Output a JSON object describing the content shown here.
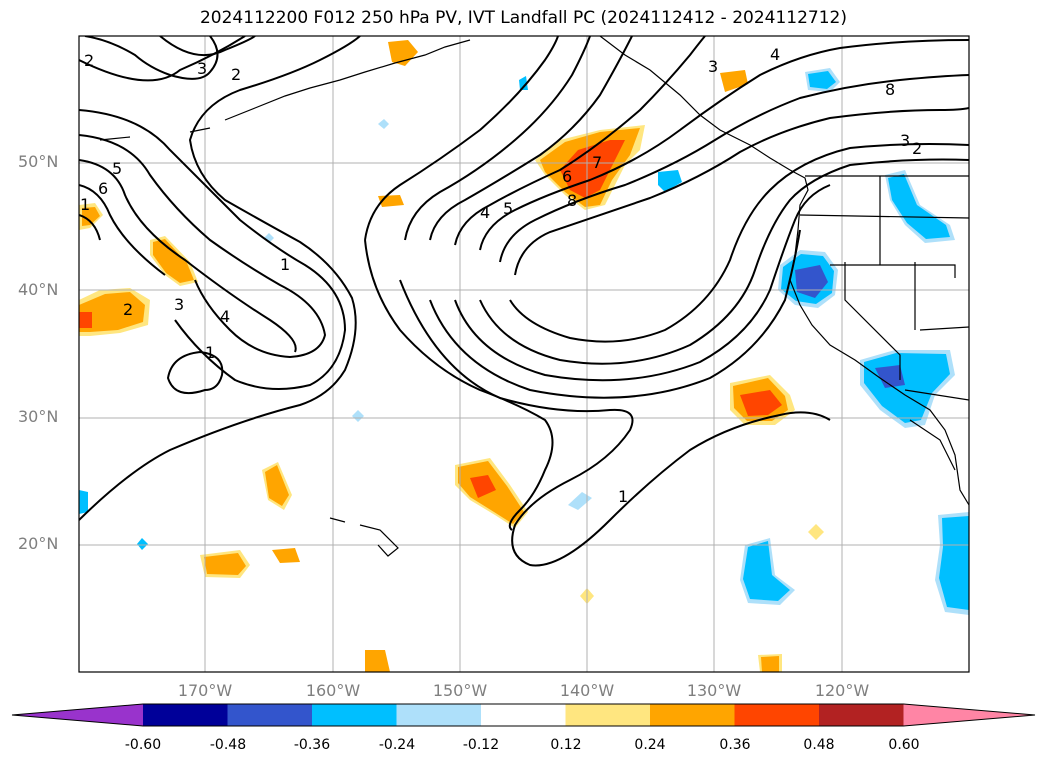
{
  "title": "2024112200 F012 250 hPa PV, IVT Landfall PC (2024112412 - 2024112712)",
  "map": {
    "projection": "equirectangular",
    "lon_range": [
      -180,
      -110
    ],
    "lat_range": [
      10,
      60
    ],
    "lat_ticks": [
      "50°N",
      "40°N",
      "30°N",
      "20°N"
    ],
    "lon_ticks": [
      "170°W",
      "160°W",
      "150°W",
      "140°W",
      "130°W",
      "120°W"
    ],
    "grid": true
  },
  "contours": {
    "color": "#000000",
    "labels": [
      "2",
      "3",
      "2",
      "3",
      "4",
      "8",
      "3",
      "2",
      "5",
      "6",
      "1",
      "4",
      "5",
      "6",
      "7",
      "8",
      "1",
      "2",
      "3",
      "4",
      "1",
      "1"
    ]
  },
  "colorbar": {
    "levels": [
      "-0.60",
      "-0.48",
      "-0.36",
      "-0.24",
      "-0.12",
      "0.12",
      "0.24",
      "0.36",
      "0.48",
      "0.60"
    ],
    "colors": [
      "#9933cc",
      "#000099",
      "#3355cc",
      "#00bfff",
      "#aee0fa",
      "#ffffff",
      "#ffe680",
      "#ffa500",
      "#ff4500",
      "#b22222",
      "#ff85a5"
    ]
  }
}
